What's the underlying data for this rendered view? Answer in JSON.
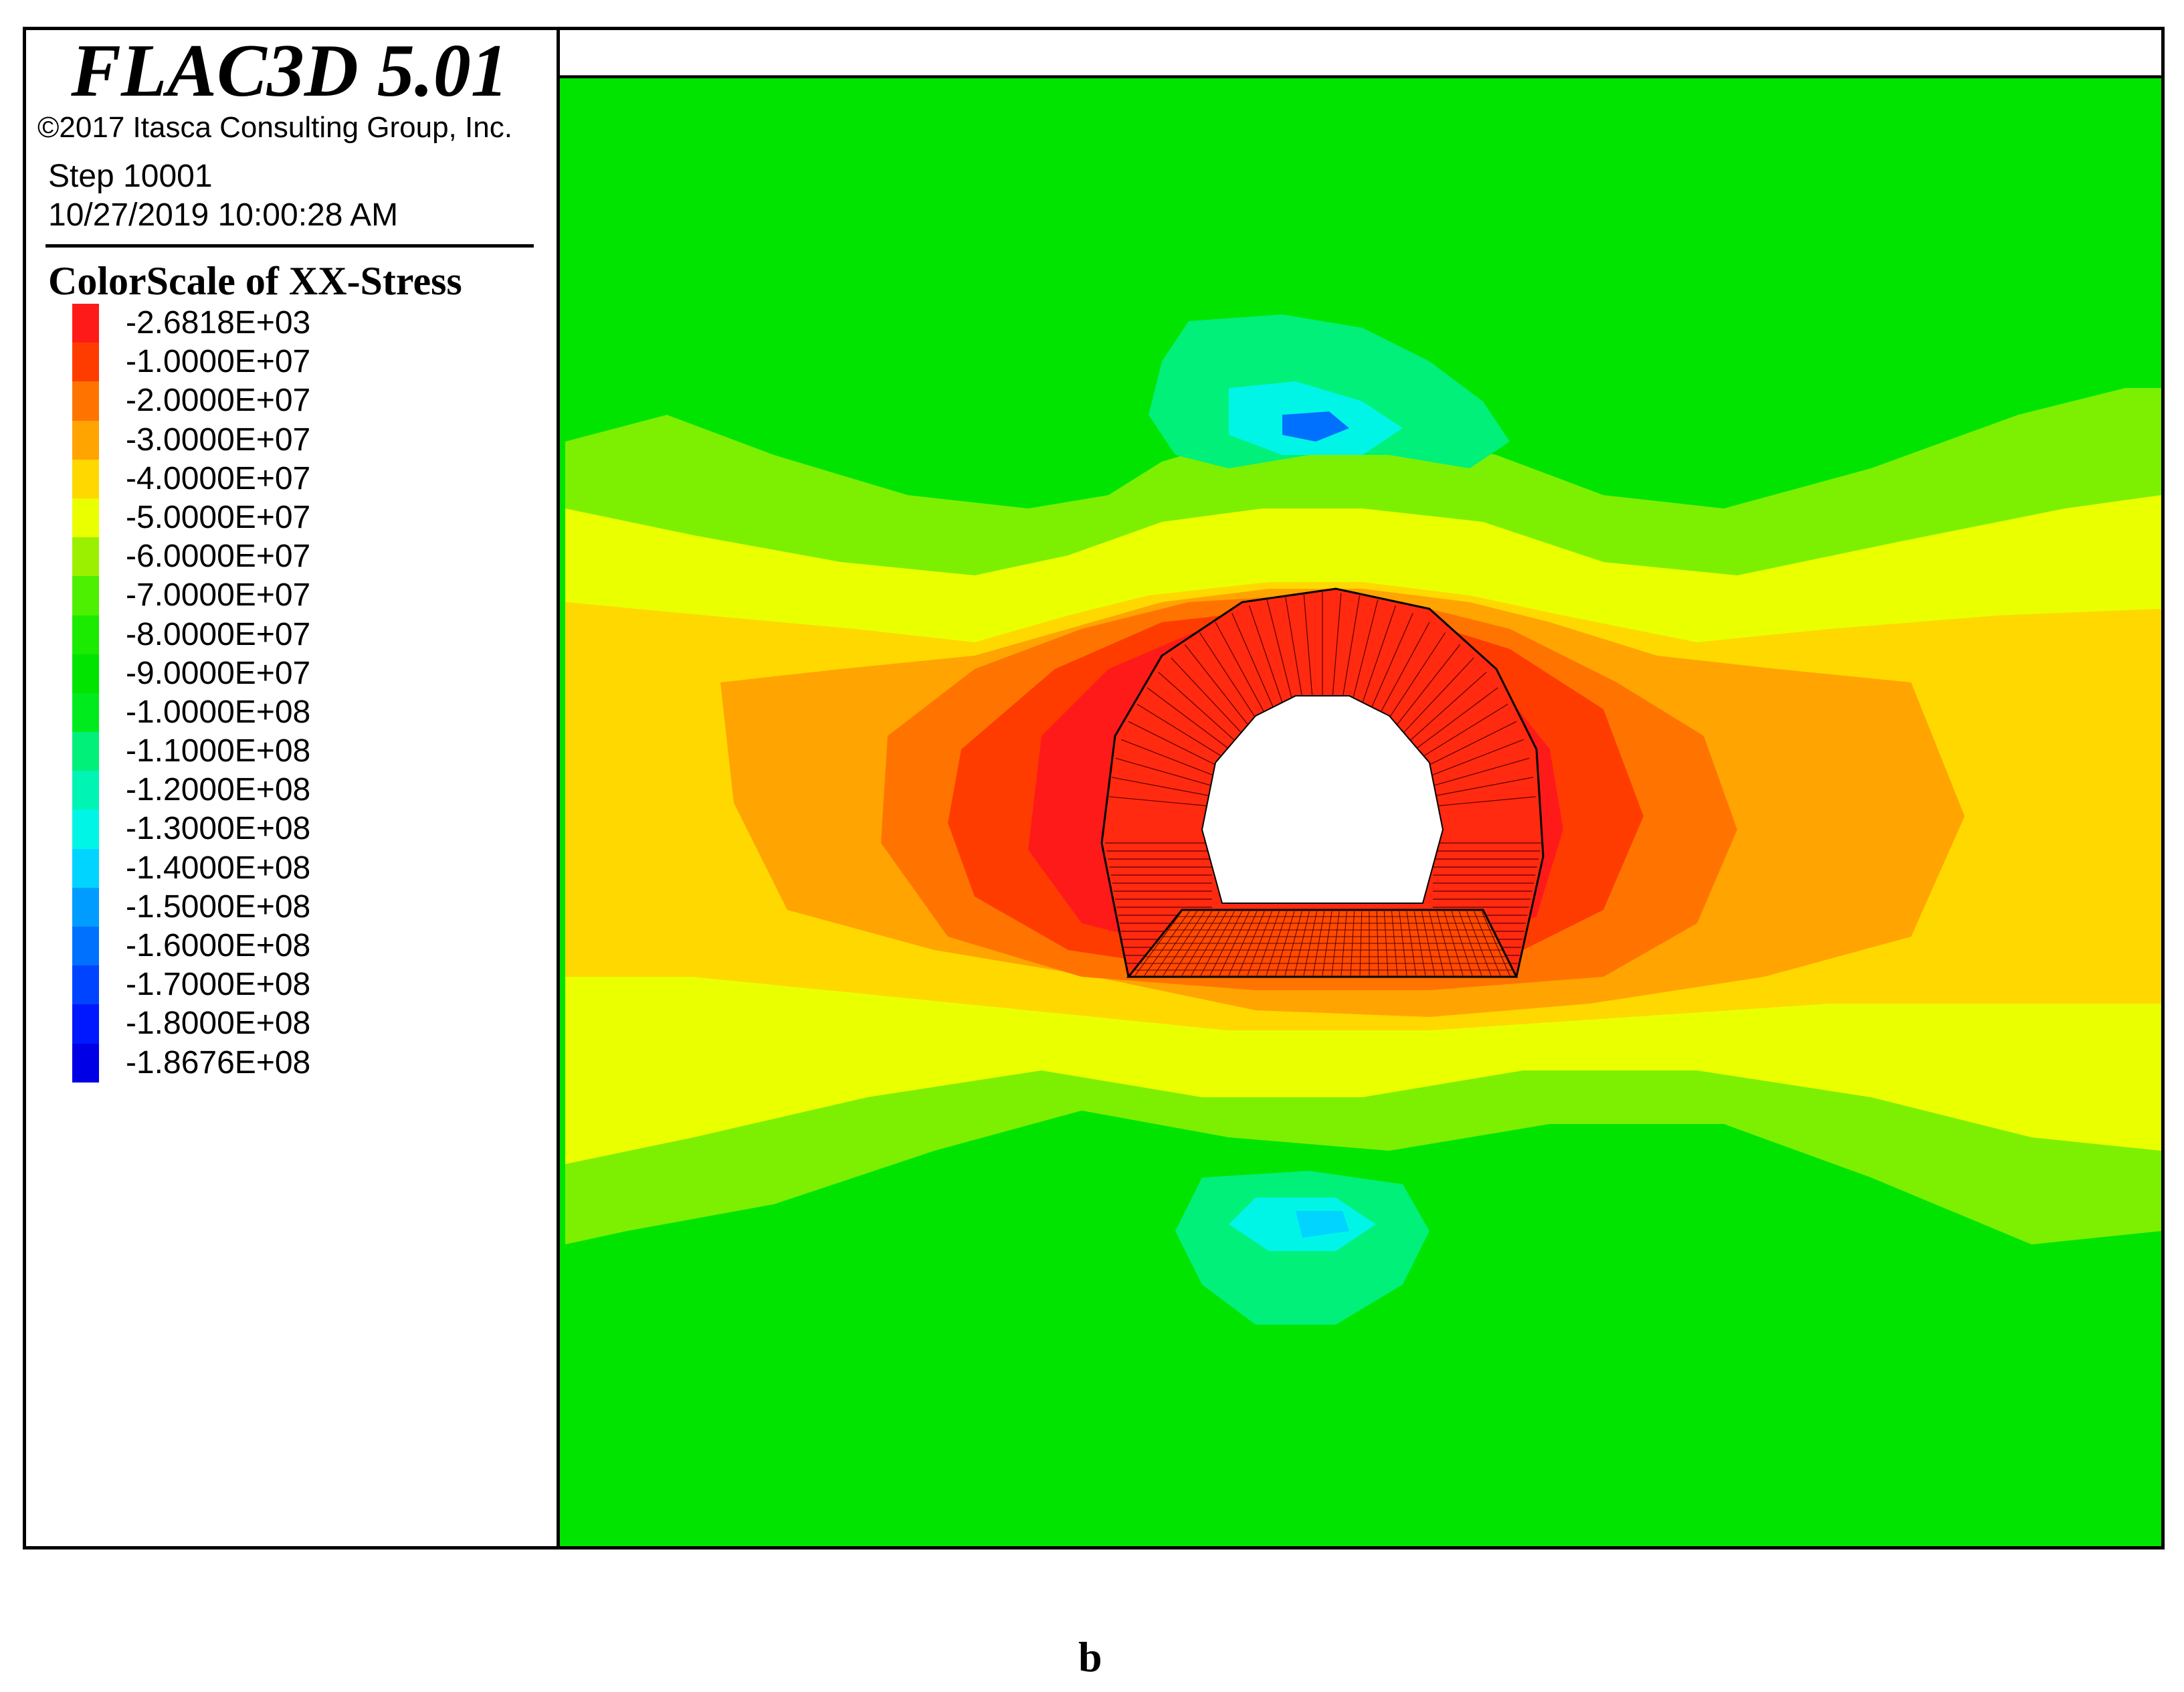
{
  "header": {
    "title": "FLAC3D 5.01",
    "copyright": "©2017 Itasca Consulting Group, Inc.",
    "step": "Step 10001",
    "datetime": "10/27/2019 10:00:28 AM"
  },
  "legend": {
    "title": "ColorScale of XX-Stress",
    "entries": [
      {
        "label": "-2.6818E+03",
        "color": "#ff1a1a"
      },
      {
        "label": "-1.0000E+07",
        "color": "#ff3c00"
      },
      {
        "label": "-2.0000E+07",
        "color": "#ff7400"
      },
      {
        "label": "-3.0000E+07",
        "color": "#ffa400"
      },
      {
        "label": "-4.0000E+07",
        "color": "#ffd800"
      },
      {
        "label": "-5.0000E+07",
        "color": "#eaff00"
      },
      {
        "label": "-6.0000E+07",
        "color": "#9bf000"
      },
      {
        "label": "-7.0000E+07",
        "color": "#4cf000"
      },
      {
        "label": "-8.0000E+07",
        "color": "#1aeb00"
      },
      {
        "label": "-9.0000E+07",
        "color": "#00e400"
      },
      {
        "label": "-1.0000E+08",
        "color": "#00eb1e"
      },
      {
        "label": "-1.1000E+08",
        "color": "#00f07a"
      },
      {
        "label": "-1.2000E+08",
        "color": "#00f5b4"
      },
      {
        "label": "-1.3000E+08",
        "color": "#00f5e6"
      },
      {
        "label": "-1.4000E+08",
        "color": "#00d4ff"
      },
      {
        "label": "-1.5000E+08",
        "color": "#009cff"
      },
      {
        "label": "-1.6000E+08",
        "color": "#0070ff"
      },
      {
        "label": "-1.7000E+08",
        "color": "#0044ff"
      },
      {
        "label": "-1.8000E+08",
        "color": "#0018ff"
      },
      {
        "label": "-1.8676E+08",
        "color": "#0000e6"
      }
    ]
  },
  "plot": {
    "background_color": "#00e400"
  },
  "caption": "b"
}
